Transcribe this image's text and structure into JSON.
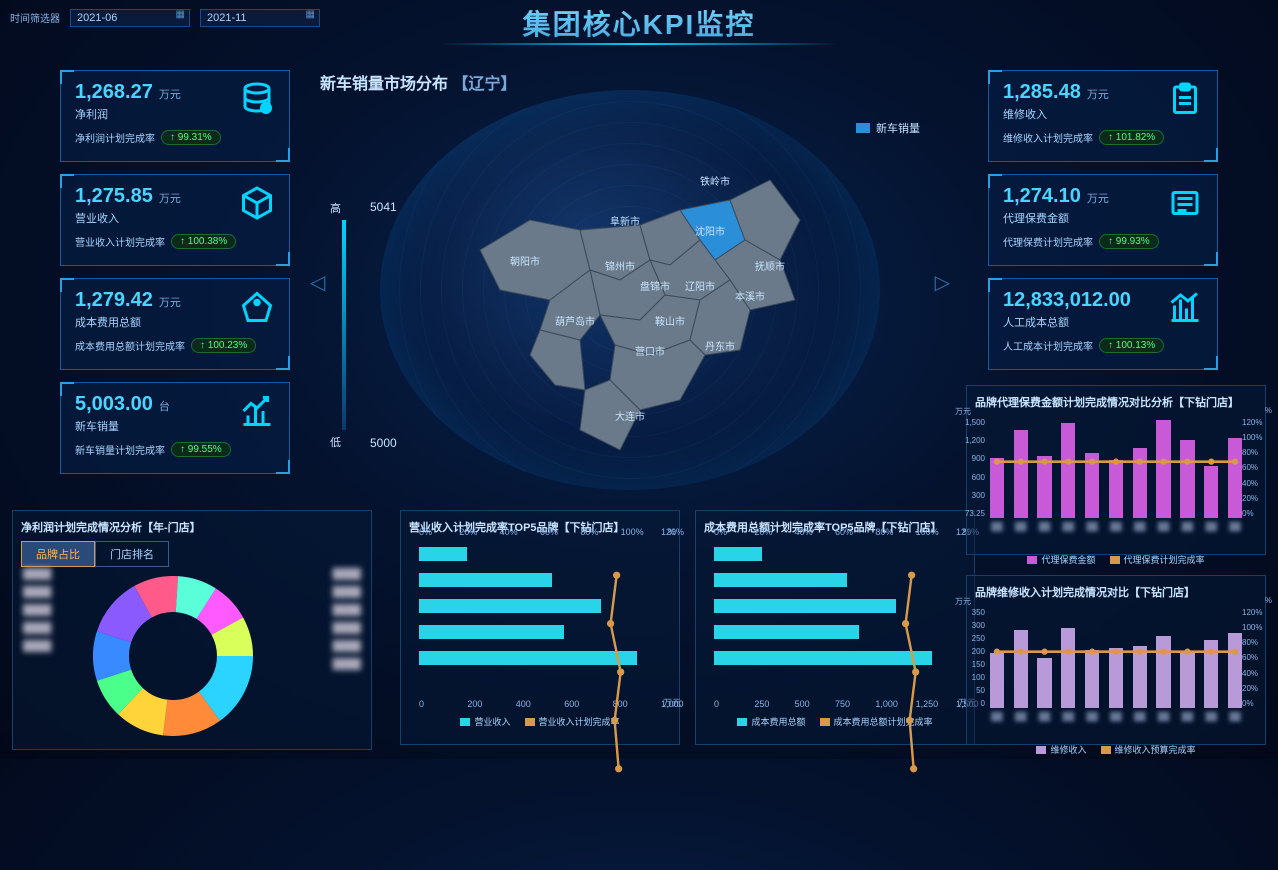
{
  "title": "集团核心KPI监控",
  "filter": {
    "label": "时间筛选器",
    "from": "2021-06",
    "to": "2021-11"
  },
  "kpi_left": [
    {
      "value": "1,268.27",
      "unit": "万元",
      "label": "净利润",
      "rate_label": "净利润计划完成率",
      "rate": "↑ 99.31%",
      "icon": "db-icon"
    },
    {
      "value": "1,275.85",
      "unit": "万元",
      "label": "营业收入",
      "rate_label": "营业收入计划完成率",
      "rate": "↑ 100.38%",
      "icon": "box-icon"
    },
    {
      "value": "1,279.42",
      "unit": "万元",
      "label": "成本费用总额",
      "rate_label": "成本费用总额计划完成率",
      "rate": "↑ 100.23%",
      "icon": "tag-icon"
    },
    {
      "value": "5,003.00",
      "unit": "台",
      "label": "新车销量",
      "rate_label": "新车销量计划完成率",
      "rate": "↑ 99.55%",
      "icon": "chart-icon"
    }
  ],
  "kpi_right": [
    {
      "value": "1,285.48",
      "unit": "万元",
      "label": "维修收入",
      "rate_label": "维修收入计划完成率",
      "rate": "↑ 101.82%",
      "icon": "clip-icon"
    },
    {
      "value": "1,274.10",
      "unit": "万元",
      "label": "代理保费金额",
      "rate_label": "代理保费计划完成率",
      "rate": "↑ 99.93%",
      "icon": "doc-icon"
    },
    {
      "value": "12,833,012.00",
      "unit": "",
      "label": "人工成本总额",
      "rate_label": "人工成本计划完成率",
      "rate": "↑ 100.13%",
      "icon": "trend-icon"
    }
  ],
  "map": {
    "title": "新车销量市场分布",
    "region": "【辽宁】",
    "legend": "新车销量",
    "scale": {
      "high_label": "高",
      "low_label": "低",
      "high": "5041",
      "low": "5000"
    },
    "cities": [
      "铁岭市",
      "沈阳市",
      "阜新市",
      "抚顺市",
      "朝阳市",
      "锦州市",
      "盘锦市",
      "辽阳市",
      "本溪市",
      "鞍山市",
      "葫芦岛市",
      "营口市",
      "丹东市",
      "大连市"
    ]
  },
  "donut": {
    "title": "净利润计划完成情况分析【年-门店】",
    "tabs": [
      "品牌占比",
      "门店排名"
    ],
    "active_tab": 0,
    "slices": [
      {
        "v": 15,
        "c": "#2ad4ff"
      },
      {
        "v": 12,
        "c": "#ff8a3a"
      },
      {
        "v": 10,
        "c": "#ffd43a"
      },
      {
        "v": 8,
        "c": "#4aff8a"
      },
      {
        "v": 10,
        "c": "#3a8aff"
      },
      {
        "v": 12,
        "c": "#8a5aff"
      },
      {
        "v": 9,
        "c": "#ff5a8a"
      },
      {
        "v": 8,
        "c": "#5affda"
      },
      {
        "v": 8,
        "c": "#ff5aff"
      },
      {
        "v": 8,
        "c": "#d8ff5a"
      }
    ]
  },
  "hbar1": {
    "title": "营业收入计划完成率TOP5品牌【下钻门店】",
    "ticks": [
      "0%",
      "20%",
      "40%",
      "60%",
      "80%",
      "100%",
      "120%"
    ],
    "xticks": [
      "0",
      "200",
      "400",
      "600",
      "800",
      "1,000"
    ],
    "xunit": "万元",
    "yunit": "%",
    "bars": [
      20,
      55,
      75,
      60,
      90
    ],
    "line": [
      98,
      95,
      100,
      97,
      99
    ],
    "legend": [
      "营业收入",
      "营业收入计划完成率"
    ],
    "bar_color": "#2ad4e8",
    "line_color": "#d89a4a"
  },
  "hbar2": {
    "title": "成本费用总额计划完成率TOP5品牌【下钻门店】",
    "ticks": [
      "0%",
      "20%",
      "40%",
      "60%",
      "80%",
      "100%",
      "120%"
    ],
    "xticks": [
      "0",
      "250",
      "500",
      "750",
      "1,000",
      "1,250",
      "1,500"
    ],
    "xunit": "万元",
    "yunit": "%",
    "bars": [
      20,
      55,
      75,
      60,
      90
    ],
    "line": [
      98,
      95,
      100,
      97,
      99
    ],
    "legend": [
      "成本费用总额",
      "成本费用总额计划完成率"
    ],
    "bar_color": "#2ad4e8",
    "line_color": "#d89a4a"
  },
  "combo1": {
    "title": "品牌代理保费金额计划完成情况对比分析【下钻门店】",
    "yl_unit": "万元",
    "yr_unit": "%",
    "yleft": [
      "1,500",
      "1,200",
      "900",
      "600",
      "300",
      "73.25"
    ],
    "yright": [
      "120%",
      "100%",
      "80%",
      "60%",
      "40%",
      "20%",
      "0%"
    ],
    "bars": [
      60,
      88,
      62,
      95,
      65,
      58,
      70,
      98,
      78,
      52,
      80
    ],
    "line": 100,
    "legend": [
      "代理保费金额",
      "代理保费计划完成率"
    ],
    "bar_color": "#c85ad8",
    "line_color": "#d89a4a"
  },
  "combo2": {
    "title": "品牌维修收入计划完成情况对比【下钻门店】",
    "yl_unit": "万元",
    "yr_unit": "%",
    "yleft": [
      "350",
      "300",
      "250",
      "200",
      "150",
      "100",
      "50",
      "0"
    ],
    "yright": [
      "120%",
      "100%",
      "80%",
      "60%",
      "40%",
      "20%",
      "0%"
    ],
    "bars": [
      55,
      78,
      50,
      80,
      58,
      60,
      62,
      72,
      55,
      68,
      75
    ],
    "line": 100,
    "legend": [
      "维修收入",
      "维修收入预算完成率"
    ],
    "bar_color": "#b89ad8",
    "line_color": "#d89a4a"
  }
}
